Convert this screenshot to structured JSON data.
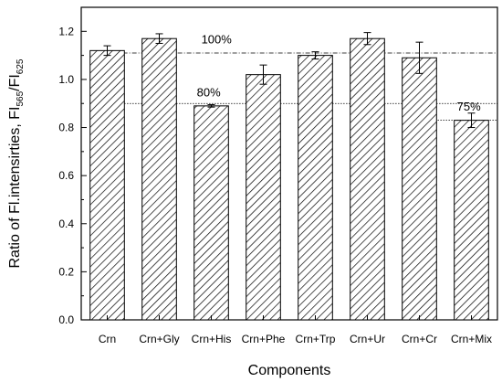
{
  "chart_data": {
    "type": "bar",
    "categories": [
      "Crn",
      "Crn+Gly",
      "Crn+His",
      "Crn+Phe",
      "Crn+Trp",
      "Crn+Ur",
      "Crn+Cr",
      "Crn+Mix"
    ],
    "values": [
      1.12,
      1.17,
      0.89,
      1.02,
      1.1,
      1.17,
      1.09,
      0.83
    ],
    "errors": [
      0.02,
      0.02,
      0.005,
      0.04,
      0.015,
      0.025,
      0.065,
      0.03
    ],
    "xlabel": "Components",
    "ylabel_main": "Ratio of Fl.intensirties, FI",
    "ylabel_sub1": "565",
    "ylabel_mid": "/FI",
    "ylabel_sub2": "625",
    "ylim": [
      0.0,
      1.3
    ],
    "yticks": [
      "0.0",
      "0.2",
      "0.4",
      "0.6",
      "0.8",
      "1.0",
      "1.2"
    ],
    "reference_lines": [
      {
        "value": 1.11,
        "label": "100%",
        "style": "dash-dot"
      },
      {
        "value": 0.9,
        "label": "80%",
        "style": "dotted"
      },
      {
        "value": 0.83,
        "label": "75%",
        "style": "dotted"
      }
    ],
    "bar_fill": "diagonal-hatch",
    "grid": false,
    "legend": "none"
  }
}
